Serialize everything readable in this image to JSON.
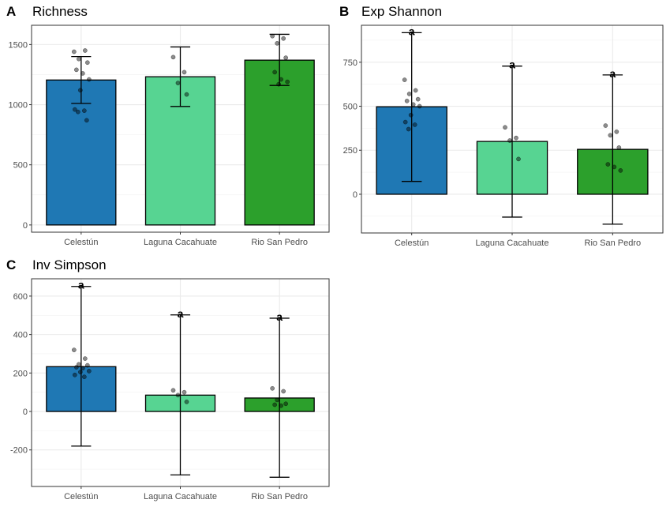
{
  "chart_data": [
    {
      "tag": "A",
      "title": "Richness",
      "type": "bar",
      "categories": [
        "Celestún",
        "Laguna Cacahuate",
        "Rio San Pedro"
      ],
      "colors": [
        "#1f78b4",
        "#57d492",
        "#2ca02c"
      ],
      "values": [
        1205,
        1232,
        1370
      ],
      "error_low": [
        1010,
        985,
        1160
      ],
      "error_high": [
        1400,
        1480,
        1585
      ],
      "points": [
        [
          1440,
          1450,
          1380,
          1350,
          1290,
          1260,
          1210,
          1120,
          960,
          950,
          940,
          870
        ],
        [
          1395,
          1270,
          1180,
          1085
        ],
        [
          1570,
          1550,
          1510,
          1390,
          1270,
          1210,
          1190,
          1170
        ]
      ],
      "significance": [],
      "ylim": [
        -60,
        1660
      ],
      "yticks": [
        0,
        500,
        1000,
        1500
      ],
      "ytick_labels": [
        "0",
        "500",
        "1000",
        "1500"
      ]
    },
    {
      "tag": "B",
      "title": "Exp Shannon",
      "type": "bar",
      "categories": [
        "Celestún",
        "Laguna Cacahuate",
        "Rio San Pedro"
      ],
      "colors": [
        "#1f78b4",
        "#57d492",
        "#2ca02c"
      ],
      "values": [
        497,
        300,
        255
      ],
      "error_low": [
        73,
        -130,
        -170
      ],
      "error_high": [
        918,
        728,
        678
      ],
      "points": [
        [
          650,
          590,
          570,
          540,
          530,
          510,
          500,
          450,
          410,
          395,
          370
        ],
        [
          380,
          320,
          305,
          200
        ],
        [
          390,
          355,
          335,
          265,
          170,
          155,
          135
        ]
      ],
      "significance": [
        "a",
        "a",
        "a"
      ],
      "ylim": [
        -220,
        960
      ],
      "yticks": [
        0,
        250,
        500,
        750
      ],
      "ytick_labels": [
        "0",
        "250",
        "500",
        "750"
      ]
    },
    {
      "tag": "C",
      "title": "Inv Simpson",
      "type": "bar",
      "categories": [
        "Celestún",
        "Laguna Cacahuate",
        "Rio San Pedro"
      ],
      "colors": [
        "#1f78b4",
        "#57d492",
        "#2ca02c"
      ],
      "values": [
        233,
        85,
        70
      ],
      "error_low": [
        -180,
        -330,
        -342
      ],
      "error_high": [
        650,
        502,
        485
      ],
      "points": [
        [
          320,
          275,
          245,
          240,
          230,
          225,
          210,
          205,
          190,
          180
        ],
        [
          110,
          100,
          85,
          50
        ],
        [
          120,
          105,
          60,
          40,
          35,
          30
        ]
      ],
      "significance": [
        "a",
        "a",
        "a"
      ],
      "ylim": [
        -390,
        690
      ],
      "yticks": [
        -200,
        0,
        200,
        400,
        600
      ],
      "ytick_labels": [
        "-200",
        "0",
        "200",
        "400",
        "600"
      ]
    }
  ]
}
